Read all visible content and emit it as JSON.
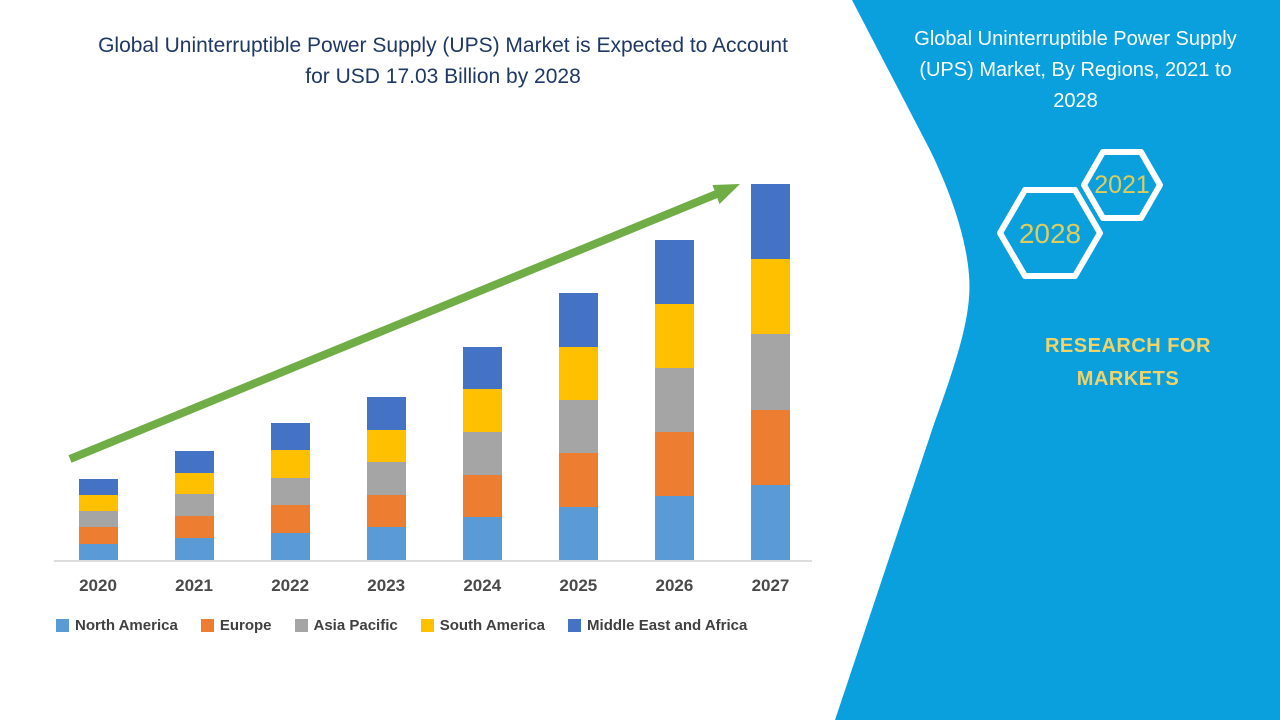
{
  "left_panel": {
    "title": "Global Uninterruptible Power Supply (UPS) Market is Expected to Account for USD 17.03 Billion by 2028"
  },
  "right_panel": {
    "title": "Global Uninterruptible Power Supply (UPS) Market, By Regions, 2021 to 2028",
    "hexagons": [
      {
        "label": "2028"
      },
      {
        "label": "2021"
      }
    ],
    "brand": "RESEARCH FOR MARKETS",
    "colors": {
      "background": "#0AA0DE",
      "hexagon_outline": "#FFFFFF",
      "year_text": "#DCCD5E",
      "brand_text": "#F1D368",
      "title_text": "#FFFFFF"
    }
  },
  "chart_data": {
    "type": "bar",
    "stacked": true,
    "title": "Global Uninterruptible Power Supply (UPS) Market is Expected to Account for USD 17.03 Billion by 2028",
    "categories": [
      "2020",
      "2021",
      "2022",
      "2023",
      "2024",
      "2025",
      "2026",
      "2027"
    ],
    "series": [
      {
        "name": "North America",
        "color": "#5B9BD5",
        "values": [
          0.64,
          0.86,
          1.08,
          1.28,
          1.68,
          2.1,
          2.52,
          2.96
        ]
      },
      {
        "name": "Europe",
        "color": "#ED7D31",
        "values": [
          0.64,
          0.86,
          1.08,
          1.28,
          1.68,
          2.1,
          2.52,
          2.96
        ]
      },
      {
        "name": "Asia Pacific",
        "color": "#A5A5A5",
        "values": [
          0.64,
          0.86,
          1.08,
          1.28,
          1.68,
          2.1,
          2.52,
          2.96
        ]
      },
      {
        "name": "South America",
        "color": "#FFC000",
        "values": [
          0.64,
          0.86,
          1.08,
          1.28,
          1.68,
          2.1,
          2.52,
          2.96
        ]
      },
      {
        "name": "Middle East and Africa",
        "color": "#4472C4",
        "values": [
          0.64,
          0.86,
          1.08,
          1.28,
          1.68,
          2.1,
          2.52,
          2.96
        ]
      }
    ],
    "totals_by_year": [
      3.2,
      4.3,
      5.4,
      6.4,
      8.4,
      10.5,
      12.6,
      14.8
    ],
    "value_units": "USD billion (estimated from bar heights; y-axis not labeled in image)",
    "xlabel": "",
    "ylabel": "",
    "ylim": [
      0,
      16
    ],
    "grid": false,
    "legend_position": "bottom",
    "annotations": [
      {
        "type": "trend-arrow",
        "description": "green upward trend arrow across bars",
        "color": "#70AD47"
      }
    ],
    "colors": {
      "axis_line": "#DCDCDC",
      "tick_label": "#4A4A4A",
      "legend_label": "#404040",
      "title": "#1F3864"
    }
  }
}
